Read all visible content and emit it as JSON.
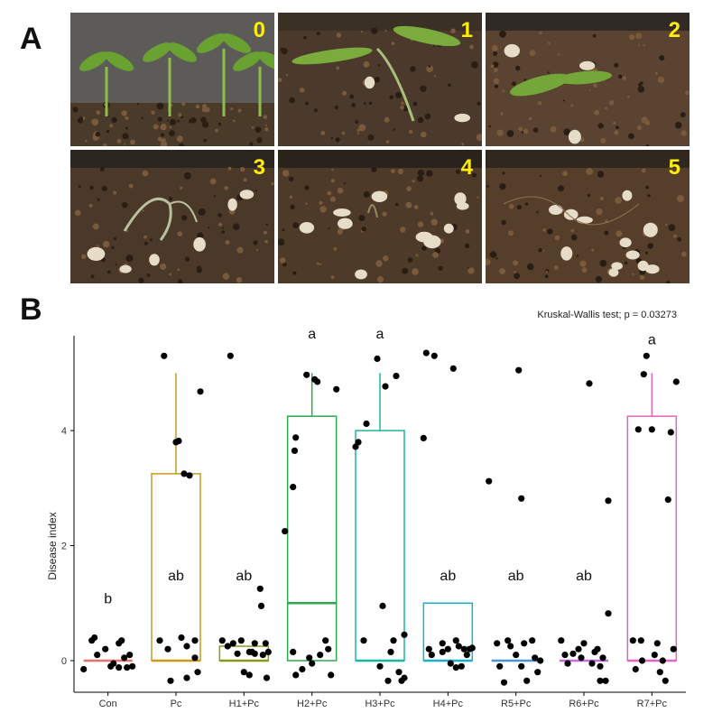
{
  "panel_a": {
    "label": "A",
    "photos": [
      {
        "score": "0",
        "colors": {
          "bg": "#5c5b57",
          "soil": "#4a3a2a",
          "plant": "#6aa232"
        }
      },
      {
        "score": "1",
        "colors": {
          "bg": "#3b3026",
          "soil": "#4b3a2b",
          "plant": "#7bab3c"
        }
      },
      {
        "score": "2",
        "colors": {
          "bg": "#2f2a25",
          "soil": "#5a4330",
          "plant": "#74a63a"
        }
      },
      {
        "score": "3",
        "colors": {
          "bg": "#2b251f",
          "soil": "#4a3828",
          "plant": "#b8c0a0"
        }
      },
      {
        "score": "4",
        "colors": {
          "bg": "#2a231c",
          "soil": "#4e3a28",
          "plant": "#9a8a60"
        }
      },
      {
        "score": "5",
        "colors": {
          "bg": "#30271e",
          "soil": "#553f2b",
          "plant": "#8c7550"
        }
      }
    ]
  },
  "panel_b": {
    "label": "B",
    "chart_data": {
      "type": "box",
      "title": "",
      "annotation": "Kruskal-Wallis test; p = 0.03273",
      "xlabel": "",
      "ylabel": "Disease index",
      "ylim": [
        -0.55,
        5.65
      ],
      "yticks": [
        0,
        2,
        4
      ],
      "grid": false,
      "legend": "none",
      "categories": [
        "Con",
        "Pc",
        "H1+Pc",
        "H2+Pc",
        "H3+Pc",
        "H4+Pc",
        "R5+Pc",
        "R6+Pc",
        "R7+Pc"
      ],
      "colors": [
        "#e8736c",
        "#c99a1e",
        "#8a9a1c",
        "#2daa4e",
        "#1cb5a2",
        "#19b0c8",
        "#4a93d8",
        "#c56ae0",
        "#e465bf"
      ],
      "letters": [
        "b",
        "ab",
        "ab",
        "a",
        "a",
        "ab",
        "ab",
        "ab",
        "a"
      ],
      "letter_y": [
        1.0,
        1.4,
        1.4,
        5.6,
        5.6,
        1.4,
        1.4,
        1.4,
        5.5
      ],
      "boxes": [
        {
          "q1": 0,
          "median": 0,
          "q3": 0,
          "whisker_low": 0,
          "whisker_high": 0
        },
        {
          "q1": 0,
          "median": 0,
          "q3": 3.25,
          "whisker_low": 0,
          "whisker_high": 5
        },
        {
          "q1": 0,
          "median": 0,
          "q3": 0.25,
          "whisker_low": 0,
          "whisker_high": 0.25
        },
        {
          "q1": 0,
          "median": 1,
          "q3": 4.25,
          "whisker_low": 0,
          "whisker_high": 5
        },
        {
          "q1": 0,
          "median": 0,
          "q3": 4,
          "whisker_low": 0,
          "whisker_high": 5
        },
        {
          "q1": 0,
          "median": 0,
          "q3": 1,
          "whisker_low": 0,
          "whisker_high": 1
        },
        {
          "q1": 0,
          "median": 0,
          "q3": 0,
          "whisker_low": 0,
          "whisker_high": 0
        },
        {
          "q1": 0,
          "median": 0,
          "q3": 0,
          "whisker_low": 0,
          "whisker_high": 0
        },
        {
          "q1": 0,
          "median": 0,
          "q3": 4.25,
          "whisker_low": 0,
          "whisker_high": 5
        }
      ],
      "points": [
        [
          [
            -0.45,
            -0.15
          ],
          [
            -0.3,
            0.35
          ],
          [
            -0.25,
            0.4
          ],
          [
            -0.2,
            0.1
          ],
          [
            -0.05,
            0.2
          ],
          [
            0.1,
            -0.05
          ],
          [
            0.2,
            0.3
          ],
          [
            0.25,
            0.35
          ],
          [
            0.4,
            0.1
          ],
          [
            0.45,
            -0.1
          ],
          [
            0.35,
            -0.12
          ],
          [
            0.3,
            0.05
          ],
          [
            0.2,
            -0.12
          ],
          [
            0.05,
            -0.1
          ]
        ],
        [
          [
            -0.3,
            0.35
          ],
          [
            -0.22,
            5.3
          ],
          [
            -0.15,
            0.2
          ],
          [
            -0.1,
            -0.35
          ],
          [
            0.0,
            3.8
          ],
          [
            0.05,
            3.82
          ],
          [
            0.1,
            0.4
          ],
          [
            0.15,
            3.25
          ],
          [
            0.2,
            -0.3
          ],
          [
            0.25,
            3.22
          ],
          [
            0.35,
            0.35
          ],
          [
            0.4,
            -0.2
          ],
          [
            0.35,
            0.05
          ],
          [
            0.45,
            4.68
          ],
          [
            0.2,
            0.25
          ]
        ],
        [
          [
            -0.4,
            0.35
          ],
          [
            -0.3,
            0.25
          ],
          [
            -0.25,
            5.3
          ],
          [
            -0.2,
            0.3
          ],
          [
            -0.12,
            0.12
          ],
          [
            -0.05,
            0.35
          ],
          [
            0.0,
            -0.2
          ],
          [
            0.1,
            -0.25
          ],
          [
            0.15,
            0.15
          ],
          [
            0.2,
            0.12
          ],
          [
            0.3,
            1.25
          ],
          [
            0.35,
            0.1
          ],
          [
            0.4,
            0.3
          ],
          [
            0.45,
            0.15
          ],
          [
            0.42,
            -0.3
          ],
          [
            0.2,
            0.3
          ],
          [
            0.32,
            0.95
          ],
          [
            0.1,
            0.15
          ]
        ],
        [
          [
            -0.5,
            2.25
          ],
          [
            -0.35,
            0.15
          ],
          [
            -0.3,
            3.88
          ],
          [
            -0.32,
            3.65
          ],
          [
            -0.35,
            3.02
          ],
          [
            -0.3,
            -0.25
          ],
          [
            -0.18,
            -0.15
          ],
          [
            -0.1,
            4.97
          ],
          [
            -0.05,
            0.05
          ],
          [
            0.0,
            -0.05
          ],
          [
            0.05,
            4.89
          ],
          [
            0.1,
            4.85
          ],
          [
            0.15,
            0.1
          ],
          [
            0.25,
            0.35
          ],
          [
            0.3,
            0.2
          ],
          [
            0.35,
            -0.25
          ],
          [
            0.45,
            4.72
          ]
        ],
        [
          [
            -0.45,
            3.72
          ],
          [
            -0.4,
            3.8
          ],
          [
            -0.3,
            0.35
          ],
          [
            -0.25,
            4.12
          ],
          [
            -0.05,
            5.25
          ],
          [
            0.0,
            -0.1
          ],
          [
            0.05,
            0.95
          ],
          [
            0.1,
            4.77
          ],
          [
            0.15,
            -0.35
          ],
          [
            0.2,
            0.15
          ],
          [
            0.3,
            4.95
          ],
          [
            0.35,
            -0.2
          ],
          [
            0.4,
            -0.35
          ],
          [
            0.45,
            -0.3
          ],
          [
            0.25,
            0.35
          ],
          [
            0.45,
            0.45
          ]
        ],
        [
          [
            -0.45,
            3.87
          ],
          [
            -0.4,
            5.35
          ],
          [
            -0.35,
            0.2
          ],
          [
            -0.3,
            0.1
          ],
          [
            -0.25,
            5.3
          ],
          [
            -0.1,
            0.3
          ],
          [
            0.0,
            0.2
          ],
          [
            0.05,
            -0.05
          ],
          [
            0.1,
            5.08
          ],
          [
            0.15,
            0.35
          ],
          [
            0.2,
            0.25
          ],
          [
            0.3,
            0.2
          ],
          [
            0.35,
            0.1
          ],
          [
            0.4,
            0.2
          ],
          [
            0.45,
            0.22
          ],
          [
            0.25,
            -0.1
          ],
          [
            0.15,
            -0.12
          ],
          [
            -0.1,
            0.15
          ]
        ],
        [
          [
            -0.5,
            3.12
          ],
          [
            -0.35,
            0.3
          ],
          [
            -0.3,
            -0.1
          ],
          [
            -0.22,
            -0.38
          ],
          [
            -0.1,
            0.25
          ],
          [
            0.0,
            0.1
          ],
          [
            0.05,
            5.05
          ],
          [
            0.1,
            2.82
          ],
          [
            0.15,
            0.3
          ],
          [
            0.2,
            -0.35
          ],
          [
            0.3,
            0.35
          ],
          [
            0.35,
            0.05
          ],
          [
            0.4,
            -0.2
          ],
          [
            0.45,
            0.0
          ],
          [
            -0.15,
            0.35
          ],
          [
            0.1,
            -0.1
          ]
        ],
        [
          [
            -0.42,
            0.35
          ],
          [
            -0.35,
            0.1
          ],
          [
            -0.3,
            -0.05
          ],
          [
            -0.2,
            0.12
          ],
          [
            -0.1,
            0.2
          ],
          [
            0.0,
            0.3
          ],
          [
            0.1,
            4.82
          ],
          [
            0.15,
            -0.05
          ],
          [
            0.25,
            0.2
          ],
          [
            0.3,
            -0.35
          ],
          [
            0.35,
            0.05
          ],
          [
            0.45,
            2.78
          ],
          [
            0.45,
            0.82
          ],
          [
            0.4,
            -0.35
          ],
          [
            -0.05,
            0.05
          ],
          [
            0.2,
            0.15
          ],
          [
            0.3,
            -0.1
          ]
        ],
        [
          [
            -0.35,
            0.35
          ],
          [
            -0.3,
            -0.15
          ],
          [
            -0.25,
            4.02
          ],
          [
            -0.2,
            0.35
          ],
          [
            -0.15,
            4.98
          ],
          [
            -0.1,
            5.3
          ],
          [
            0.0,
            4.02
          ],
          [
            0.05,
            0.1
          ],
          [
            0.15,
            -0.2
          ],
          [
            0.2,
            0.0
          ],
          [
            0.25,
            -0.35
          ],
          [
            0.3,
            2.8
          ],
          [
            0.35,
            3.97
          ],
          [
            0.4,
            0.2
          ],
          [
            0.45,
            4.85
          ],
          [
            0.1,
            0.3
          ],
          [
            -0.18,
            0.0
          ]
        ]
      ]
    }
  }
}
